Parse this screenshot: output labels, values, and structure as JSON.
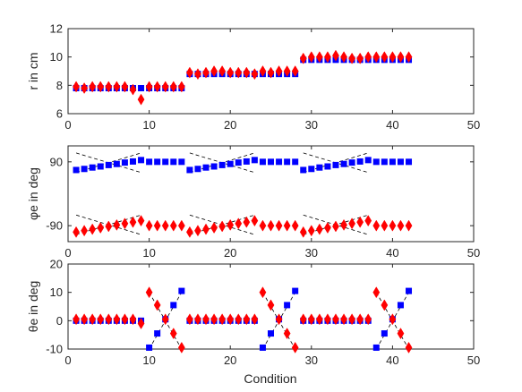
{
  "colors": {
    "series1": "#0000ff",
    "series2": "#ff0000",
    "guide": "#000000",
    "axis": "#262626",
    "text": "#262626"
  },
  "figure": {
    "xlabel": "Condition"
  },
  "chart_data": [
    {
      "type": "scatter",
      "ylabel": "r in cm",
      "xlim": [
        0,
        50
      ],
      "ylim": [
        6,
        12
      ],
      "xticks": [
        0,
        10,
        20,
        30,
        40,
        50
      ],
      "yticks": [
        6,
        8,
        10,
        12
      ],
      "grid": false,
      "series": [
        {
          "marker": "square",
          "color": "#0000ff",
          "x": [
            1,
            2,
            3,
            4,
            5,
            6,
            7,
            8,
            9,
            10,
            11,
            12,
            13,
            14,
            15,
            16,
            17,
            18,
            19,
            20,
            21,
            22,
            23,
            24,
            25,
            26,
            27,
            28,
            29,
            30,
            31,
            32,
            33,
            34,
            35,
            36,
            37,
            38,
            39,
            40,
            41,
            42
          ],
          "y": [
            7.8,
            7.8,
            7.8,
            7.8,
            7.8,
            7.8,
            7.8,
            7.8,
            7.8,
            7.8,
            7.8,
            7.8,
            7.8,
            7.8,
            8.8,
            8.8,
            8.8,
            8.8,
            8.8,
            8.8,
            8.8,
            8.8,
            8.8,
            8.8,
            8.8,
            8.8,
            8.8,
            8.8,
            9.8,
            9.8,
            9.8,
            9.8,
            9.8,
            9.8,
            9.8,
            9.8,
            9.8,
            9.8,
            9.8,
            9.8,
            9.8,
            9.8
          ]
        },
        {
          "marker": "diamond",
          "color": "#ff0000",
          "x": [
            1,
            2,
            3,
            4,
            5,
            6,
            7,
            8,
            9,
            10,
            11,
            12,
            13,
            14,
            15,
            16,
            17,
            18,
            19,
            20,
            21,
            22,
            23,
            24,
            25,
            26,
            27,
            28,
            29,
            30,
            31,
            32,
            33,
            34,
            35,
            36,
            37,
            38,
            39,
            40,
            41,
            42
          ],
          "y": [
            7.9,
            7.8,
            7.9,
            7.9,
            7.9,
            7.9,
            7.9,
            7.7,
            7.0,
            7.9,
            7.9,
            7.9,
            7.9,
            7.9,
            8.9,
            8.8,
            8.9,
            9.0,
            9.0,
            8.9,
            8.9,
            8.9,
            8.8,
            9.0,
            8.9,
            9.0,
            9.0,
            9.0,
            9.9,
            10.0,
            10.0,
            10.0,
            10.1,
            10.0,
            9.9,
            9.9,
            10.0,
            10.0,
            10.0,
            10.0,
            10.0,
            10.0
          ]
        }
      ]
    },
    {
      "type": "scatter",
      "ylabel": "φe in deg",
      "xlim": [
        0,
        50
      ],
      "ylim": [
        -135,
        135
      ],
      "xticks": [
        0,
        10,
        20,
        30,
        40,
        50
      ],
      "yticks": [
        -90,
        90
      ],
      "ytick_labels": [
        "-90",
        "90"
      ],
      "grid": false,
      "guides": [
        [
          [
            1,
            60
          ],
          [
            9,
            115
          ]
        ],
        [
          [
            15,
            60
          ],
          [
            23,
            115
          ]
        ],
        [
          [
            29,
            60
          ],
          [
            37,
            115
          ]
        ],
        [
          [
            1,
            115
          ],
          [
            9,
            60
          ]
        ],
        [
          [
            15,
            115
          ],
          [
            23,
            60
          ]
        ],
        [
          [
            29,
            115
          ],
          [
            37,
            60
          ]
        ],
        [
          [
            1,
            -60
          ],
          [
            9,
            -115
          ]
        ],
        [
          [
            15,
            -60
          ],
          [
            23,
            -115
          ]
        ],
        [
          [
            29,
            -60
          ],
          [
            37,
            -115
          ]
        ],
        [
          [
            1,
            -115
          ],
          [
            9,
            -60
          ]
        ],
        [
          [
            15,
            -115
          ],
          [
            23,
            -60
          ]
        ],
        [
          [
            29,
            -115
          ],
          [
            37,
            -60
          ]
        ]
      ],
      "series": [
        {
          "marker": "square",
          "color": "#0000ff",
          "x": [
            1,
            2,
            3,
            4,
            5,
            6,
            7,
            8,
            9,
            10,
            11,
            12,
            13,
            14,
            15,
            16,
            17,
            18,
            19,
            20,
            21,
            22,
            23,
            24,
            25,
            26,
            27,
            28,
            29,
            30,
            31,
            32,
            33,
            34,
            35,
            36,
            37,
            38,
            39,
            40,
            41,
            42
          ],
          "y": [
            67,
            70,
            74,
            77,
            81,
            84,
            88,
            91,
            95,
            90,
            90,
            90,
            90,
            90,
            67,
            70,
            74,
            77,
            81,
            84,
            88,
            91,
            95,
            90,
            90,
            90,
            90,
            90,
            67,
            70,
            74,
            77,
            81,
            84,
            88,
            91,
            95,
            90,
            90,
            90,
            90,
            90
          ]
        },
        {
          "marker": "diamond",
          "color": "#ff0000",
          "x": [
            1,
            2,
            3,
            4,
            5,
            6,
            7,
            8,
            9,
            10,
            11,
            12,
            13,
            14,
            15,
            16,
            17,
            18,
            19,
            20,
            21,
            22,
            23,
            24,
            25,
            26,
            27,
            28,
            29,
            30,
            31,
            32,
            33,
            34,
            35,
            36,
            37,
            38,
            39,
            40,
            41,
            42
          ],
          "y": [
            -108,
            -104,
            -100,
            -96,
            -92,
            -88,
            -84,
            -80,
            -76,
            -90,
            -90,
            -90,
            -90,
            -90,
            -108,
            -104,
            -100,
            -96,
            -92,
            -88,
            -84,
            -80,
            -76,
            -90,
            -90,
            -90,
            -90,
            -90,
            -108,
            -104,
            -100,
            -96,
            -92,
            -88,
            -84,
            -80,
            -76,
            -90,
            -90,
            -90,
            -90,
            -90
          ]
        }
      ]
    },
    {
      "type": "scatter",
      "ylabel": "θe in deg",
      "xlim": [
        0,
        50
      ],
      "ylim": [
        -10,
        20
      ],
      "xticks": [
        0,
        10,
        20,
        30,
        40,
        50
      ],
      "yticks": [
        -10,
        0,
        10,
        20
      ],
      "grid": false,
      "guides": [
        [
          [
            10,
            10
          ],
          [
            14,
            -10
          ]
        ],
        [
          [
            10,
            -10
          ],
          [
            14,
            10
          ]
        ],
        [
          [
            24,
            10
          ],
          [
            28,
            -10
          ]
        ],
        [
          [
            24,
            -10
          ],
          [
            28,
            10
          ]
        ],
        [
          [
            38,
            10
          ],
          [
            42,
            -10
          ]
        ],
        [
          [
            38,
            -10
          ],
          [
            42,
            10
          ]
        ]
      ],
      "series": [
        {
          "marker": "square",
          "color": "#0000ff",
          "x": [
            1,
            2,
            3,
            4,
            5,
            6,
            7,
            8,
            9,
            10,
            11,
            12,
            13,
            14,
            15,
            16,
            17,
            18,
            19,
            20,
            21,
            22,
            23,
            24,
            25,
            26,
            27,
            28,
            29,
            30,
            31,
            32,
            33,
            34,
            35,
            36,
            37,
            38,
            39,
            40,
            41,
            42
          ],
          "y": [
            0,
            0,
            0,
            0,
            0,
            0,
            0,
            0,
            0,
            -9.5,
            -4.5,
            0.5,
            5.5,
            10.5,
            0,
            0,
            0,
            0,
            0,
            0,
            0,
            0,
            0,
            -9.5,
            -4.5,
            0.5,
            5.5,
            10.5,
            0,
            0,
            0,
            0,
            0,
            0,
            0,
            0,
            0,
            -9.5,
            -4.5,
            0.5,
            5.5,
            10.5
          ]
        },
        {
          "marker": "diamond",
          "color": "#ff0000",
          "x": [
            1,
            2,
            3,
            4,
            5,
            6,
            7,
            8,
            9,
            10,
            11,
            12,
            13,
            14,
            15,
            16,
            17,
            18,
            19,
            20,
            21,
            22,
            23,
            24,
            25,
            26,
            27,
            28,
            29,
            30,
            31,
            32,
            33,
            34,
            35,
            36,
            37,
            38,
            39,
            40,
            41,
            42
          ],
          "y": [
            0.5,
            0.5,
            0.5,
            0.5,
            0.5,
            0.5,
            0.5,
            0.5,
            -1,
            10,
            5.5,
            0.5,
            -4.5,
            -9.5,
            0.5,
            0.5,
            0.5,
            0.5,
            0.5,
            0.5,
            0.5,
            0.5,
            0.5,
            10,
            5.5,
            0.5,
            -4.5,
            -9.5,
            0.5,
            0.5,
            0.5,
            0.5,
            0.5,
            0.5,
            0.5,
            0.5,
            0.5,
            10,
            5.5,
            0.5,
            -4.5,
            -9.5
          ]
        }
      ]
    }
  ]
}
